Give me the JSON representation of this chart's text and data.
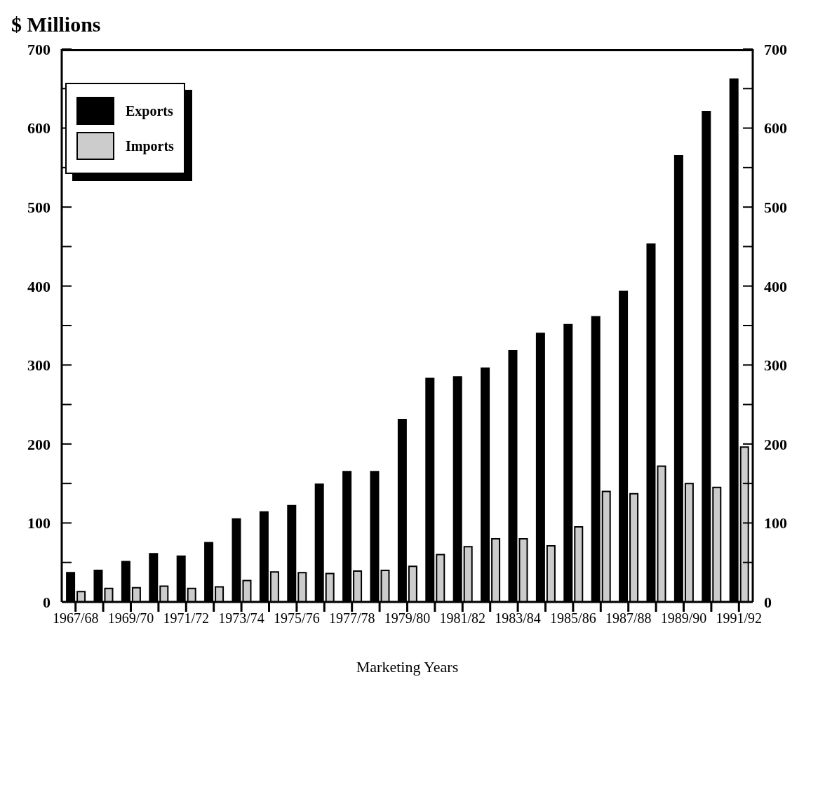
{
  "chart_data": {
    "type": "bar",
    "ylabel": "$ Millions",
    "xlabel": "Marketing Years",
    "categories": [
      "1967/68",
      null,
      "1969/70",
      null,
      "1971/72",
      null,
      "1973/74",
      null,
      "1975/76",
      null,
      "1977/78",
      null,
      "1979/80",
      null,
      "1981/82",
      null,
      "1983/84",
      null,
      "1985/86",
      null,
      "1987/88",
      null,
      "1989/90",
      null,
      "1991/92"
    ],
    "series": [
      {
        "name": "Exports",
        "color": "#000000",
        "values": [
          37,
          40,
          51,
          61,
          58,
          75,
          105,
          114,
          122,
          149,
          165,
          165,
          231,
          283,
          285,
          296,
          318,
          340,
          351,
          361,
          393,
          453,
          565,
          621,
          662
        ]
      },
      {
        "name": "Imports",
        "color": "#cccccc",
        "values": [
          13,
          17,
          18,
          20,
          17,
          19,
          27,
          38,
          37,
          36,
          39,
          40,
          45,
          60,
          70,
          80,
          80,
          71,
          95,
          140,
          137,
          172,
          150,
          145,
          196
        ]
      }
    ],
    "ylim": [
      0,
      700
    ],
    "yticks": [
      0,
      {
        "value": 50,
        "label": null
      },
      100,
      {
        "value": 150,
        "label": null
      },
      200,
      {
        "value": 250,
        "label": null
      },
      300,
      {
        "value": 350,
        "label": null
      },
      400,
      {
        "value": 450,
        "label": null
      },
      500,
      {
        "value": 550,
        "label": null
      },
      600,
      {
        "value": 650,
        "label": null
      },
      700
    ],
    "y2lim": [
      0,
      700
    ],
    "y2ticks": [
      0,
      {
        "value": 50,
        "label": null
      },
      100,
      {
        "value": 150,
        "label": null
      },
      200,
      {
        "value": 250,
        "label": null
      },
      300,
      {
        "value": 350,
        "label": null
      },
      400,
      {
        "value": 450,
        "label": null
      },
      500,
      {
        "value": 550,
        "label": null
      },
      600,
      {
        "value": 650,
        "label": null
      },
      700
    ],
    "legend": "top left"
  }
}
